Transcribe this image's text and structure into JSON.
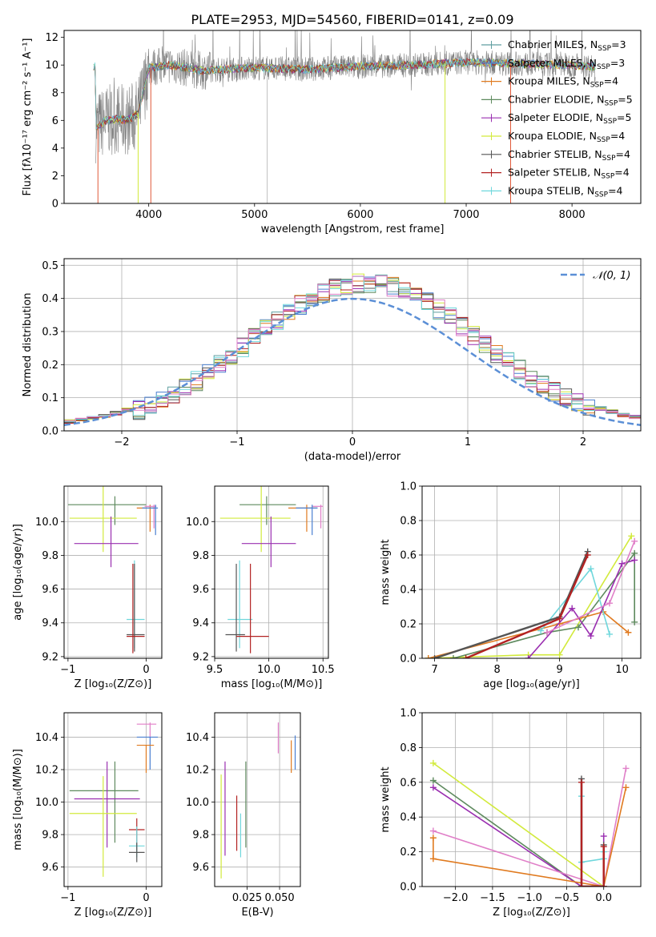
{
  "figure_title": "PLATE=2953, MJD=54560, FIBERID=0141, z=0.09",
  "colors": {
    "Chabrier MILES": "#5f9ea0",
    "Salpeter MILES": "#4a7fd0",
    "Kroupa MILES": "#e07a1f",
    "Chabrier ELODIE": "#5e8a5e",
    "Salpeter ELODIE": "#9a2fb0",
    "Kroupa ELODIE": "#d2ea3c",
    "Chabrier STELIB": "#555555",
    "Salpeter STELIB": "#b22222",
    "Kroupa STELIB": "#6fd7dc",
    "pink": "#e07fc8",
    "gaussian": "#5b8fd6"
  },
  "chart_data": [
    {
      "id": "spectrum",
      "type": "line",
      "xlabel": "wavelength [Angstrom, rest frame]",
      "ylabel": "Flux [fλ10⁻¹⁷ erg cm⁻² s⁻¹ A⁻¹]",
      "xlim": [
        3200,
        8650
      ],
      "ylim": [
        0,
        12.5
      ],
      "xticks": [
        4000,
        5000,
        6000,
        7000,
        8000
      ],
      "yticks": [
        0,
        2,
        4,
        6,
        8,
        10,
        12
      ],
      "grid": false,
      "legend_position": "right",
      "legend": [
        "Chabrier MILES, N_SSP=3",
        "Salpeter MILES, N_SSP=3",
        "Kroupa MILES, N_SSP=4",
        "Chabrier ELODIE, N_SSP=5",
        "Salpeter ELODIE, N_SSP=5",
        "Kroupa ELODIE, N_SSP=4",
        "Chabrier STELIB, N_SSP=4",
        "Salpeter STELIB, N_SSP=4",
        "Kroupa STELIB, N_SSP=4"
      ],
      "observed_continuum": [
        [
          3500,
          5.5
        ],
        [
          3600,
          6.0
        ],
        [
          3700,
          6.1
        ],
        [
          3800,
          6.0
        ],
        [
          3900,
          6.5
        ],
        [
          4000,
          9.8
        ],
        [
          4200,
          10.0
        ],
        [
          4500,
          9.6
        ],
        [
          5000,
          9.8
        ],
        [
          5500,
          9.7
        ],
        [
          6000,
          9.9
        ],
        [
          6500,
          10.0
        ],
        [
          7000,
          10.2
        ],
        [
          7500,
          10.1
        ],
        [
          8000,
          10.0
        ],
        [
          8200,
          9.9
        ]
      ],
      "dropouts": [
        3520,
        3900,
        4020,
        6800,
        7420
      ]
    },
    {
      "id": "residuals",
      "type": "line",
      "xlabel": "(data-model)/error",
      "ylabel": "Normed distribution",
      "xlim": [
        -2.5,
        2.5
      ],
      "ylim": [
        0,
        0.52
      ],
      "xticks": [
        -2,
        -1,
        0,
        1,
        2
      ],
      "yticks": [
        0.0,
        0.1,
        0.2,
        0.3,
        0.4,
        0.5
      ],
      "grid": true,
      "legend_position": "top-right",
      "legend": [
        "𝒩(0, 1)"
      ],
      "gaussian": {
        "mu": 0,
        "sigma": 1
      },
      "bin_width": 0.1,
      "hist_range": [
        -2.5,
        2.5
      ]
    },
    {
      "id": "age-Z",
      "type": "scatter",
      "xlabel": "Z [log₁₀(Z/Z⊙)]",
      "ylabel": "age  [log₁₀(age/yr)]",
      "xlim": [
        -1.05,
        0.2
      ],
      "ylim": [
        9.19,
        10.21
      ],
      "xticks": [
        -1,
        0
      ],
      "yticks": [
        9.2,
        9.4,
        9.6,
        9.8,
        10.0
      ],
      "grid": true,
      "points": [
        {
          "key": "Chabrier ELODIE",
          "x": -0.4,
          "y": 10.1,
          "xlo": -1.0,
          "xhi": 0.0,
          "ylo": 9.98,
          "yhi": 10.15
        },
        {
          "key": "Kroupa ELODIE",
          "x": -0.55,
          "y": 10.02,
          "xlo": -0.98,
          "xhi": -0.12,
          "ylo": 9.82,
          "yhi": 10.22
        },
        {
          "key": "Salpeter ELODIE",
          "x": -0.45,
          "y": 9.87,
          "xlo": -0.92,
          "xhi": -0.1,
          "ylo": 9.73,
          "yhi": 10.03
        },
        {
          "key": "Kroupa MILES",
          "x": 0.05,
          "y": 10.08,
          "xlo": -0.12,
          "xhi": 0.12,
          "ylo": 9.94,
          "yhi": 10.1
        },
        {
          "key": "pink",
          "x": 0.1,
          "y": 10.09,
          "xlo": -0.02,
          "xhi": 0.13,
          "ylo": 9.96,
          "yhi": 10.1
        },
        {
          "key": "Salpeter MILES",
          "x": 0.12,
          "y": 10.08,
          "xlo": -0.05,
          "xhi": 0.15,
          "ylo": 9.92,
          "yhi": 10.1
        },
        {
          "key": "Kroupa STELIB",
          "x": -0.15,
          "y": 9.42,
          "xlo": -0.25,
          "xhi": -0.02,
          "ylo": 9.25,
          "yhi": 9.77
        },
        {
          "key": "Chabrier STELIB",
          "x": -0.15,
          "y": 9.33,
          "xlo": -0.25,
          "xhi": -0.02,
          "ylo": 9.23,
          "yhi": 9.75
        },
        {
          "key": "Salpeter STELIB",
          "x": -0.17,
          "y": 9.32,
          "xlo": -0.25,
          "xhi": -0.02,
          "ylo": 9.22,
          "yhi": 9.75
        }
      ]
    },
    {
      "id": "age-mass",
      "type": "scatter",
      "xlabel": "mass [log₁₀(M/M⊙)]",
      "ylabel": "",
      "xlim": [
        9.5,
        10.55
      ],
      "ylim": [
        9.19,
        10.21
      ],
      "xticks": [
        9.5,
        10.0,
        10.5
      ],
      "yticks": [
        9.2,
        9.4,
        9.6,
        9.8,
        10.0
      ],
      "grid": true,
      "points": [
        {
          "key": "Chabrier ELODIE",
          "x": 9.98,
          "y": 10.1,
          "xlo": 9.73,
          "xhi": 10.25,
          "ylo": 9.98,
          "yhi": 10.15
        },
        {
          "key": "Kroupa ELODIE",
          "x": 9.93,
          "y": 10.02,
          "xlo": 9.55,
          "xhi": 10.2,
          "ylo": 9.82,
          "yhi": 10.22
        },
        {
          "key": "Salpeter ELODIE",
          "x": 10.02,
          "y": 9.87,
          "xlo": 9.75,
          "xhi": 10.25,
          "ylo": 9.73,
          "yhi": 10.03
        },
        {
          "key": "Kroupa MILES",
          "x": 10.35,
          "y": 10.08,
          "xlo": 10.18,
          "xhi": 10.45,
          "ylo": 9.94,
          "yhi": 10.1
        },
        {
          "key": "pink",
          "x": 10.48,
          "y": 10.09,
          "xlo": 10.4,
          "xhi": 10.5,
          "ylo": 9.96,
          "yhi": 10.1
        },
        {
          "key": "Salpeter MILES",
          "x": 10.4,
          "y": 10.08,
          "xlo": 10.25,
          "xhi": 10.45,
          "ylo": 9.92,
          "yhi": 10.1
        },
        {
          "key": "Kroupa STELIB",
          "x": 9.73,
          "y": 9.42,
          "xlo": 9.62,
          "xhi": 9.85,
          "ylo": 9.25,
          "yhi": 9.77
        },
        {
          "key": "Chabrier STELIB",
          "x": 9.7,
          "y": 9.33,
          "xlo": 9.6,
          "xhi": 9.78,
          "ylo": 9.23,
          "yhi": 9.75
        },
        {
          "key": "Salpeter STELIB",
          "x": 9.83,
          "y": 9.32,
          "xlo": 9.7,
          "xhi": 10.0,
          "ylo": 9.22,
          "yhi": 9.75
        }
      ]
    },
    {
      "id": "weight-age",
      "type": "line",
      "xlabel": "age  [log₁₀(age/yr)]",
      "ylabel": "mass weight",
      "xlim": [
        6.8,
        10.3
      ],
      "ylim": [
        0,
        1
      ],
      "xticks": [
        7,
        8,
        9,
        10
      ],
      "yticks": [
        0.0,
        0.2,
        0.4,
        0.6,
        0.8,
        1.0
      ],
      "grid": true,
      "series": [
        {
          "key": "Kroupa ELODIE",
          "x": [
            6.9,
            8.5,
            9.0,
            10.15
          ],
          "y": [
            0.0,
            0.02,
            0.02,
            0.71
          ]
        },
        {
          "key": "Chabrier ELODIE",
          "x": [
            7.3,
            8.8,
            9.3,
            10.2,
            10.2
          ],
          "y": [
            0.0,
            0.15,
            0.18,
            0.61,
            0.21
          ]
        },
        {
          "key": "Kroupa MILES",
          "x": [
            6.9,
            9.0,
            9.7,
            10.1
          ],
          "y": [
            0.0,
            0.2,
            0.27,
            0.15
          ]
        },
        {
          "key": "Kroupa STELIB",
          "x": [
            8.7,
            9.5,
            9.8
          ],
          "y": [
            0.16,
            0.52,
            0.14
          ]
        },
        {
          "key": "Salpeter ELODIE",
          "x": [
            8.5,
            9.2,
            9.5,
            10.0,
            10.2
          ],
          "y": [
            0.0,
            0.29,
            0.13,
            0.55,
            0.57
          ]
        },
        {
          "key": "pink",
          "x": [
            8.8,
            9.8,
            10.2
          ],
          "y": [
            0.15,
            0.32,
            0.68
          ]
        },
        {
          "key": "Chabrier STELIB",
          "x": [
            7.0,
            9.0,
            9.45
          ],
          "y": [
            0.0,
            0.24,
            0.62
          ]
        },
        {
          "key": "Salpeter STELIB",
          "x": [
            7.5,
            9.0,
            9.45
          ],
          "y": [
            0.0,
            0.23,
            0.6
          ]
        }
      ]
    },
    {
      "id": "mass-Z",
      "type": "scatter",
      "xlabel": "Z [log₁₀(Z/Z⊙)]",
      "ylabel": "mass [log₁₀(M/M⊙)]",
      "xlim": [
        -1.05,
        0.2
      ],
      "ylim": [
        9.48,
        10.55
      ],
      "xticks": [
        -1,
        0
      ],
      "yticks": [
        9.6,
        9.8,
        10.0,
        10.2,
        10.4
      ],
      "grid": true,
      "points": [
        {
          "key": "Chabrier ELODIE",
          "x": -0.4,
          "y": 10.07,
          "xlo": -0.98,
          "xhi": -0.1,
          "ylo": 9.75,
          "yhi": 10.25
        },
        {
          "key": "Salpeter ELODIE",
          "x": -0.5,
          "y": 10.02,
          "xlo": -0.92,
          "xhi": -0.08,
          "ylo": 9.72,
          "yhi": 10.25
        },
        {
          "key": "Kroupa ELODIE",
          "x": -0.55,
          "y": 9.93,
          "xlo": -0.98,
          "xhi": -0.12,
          "ylo": 9.54,
          "yhi": 10.16
        },
        {
          "key": "pink",
          "x": 0.05,
          "y": 10.48,
          "xlo": -0.12,
          "xhi": 0.13,
          "ylo": 10.4,
          "yhi": 10.49
        },
        {
          "key": "Salpeter MILES",
          "x": 0.05,
          "y": 10.4,
          "xlo": -0.12,
          "xhi": 0.15,
          "ylo": 10.2,
          "yhi": 10.4
        },
        {
          "key": "Kroupa MILES",
          "x": 0.0,
          "y": 10.35,
          "xlo": -0.12,
          "xhi": 0.1,
          "ylo": 10.18,
          "yhi": 10.35
        },
        {
          "key": "Salpeter STELIB",
          "x": -0.12,
          "y": 9.83,
          "xlo": -0.22,
          "xhi": -0.02,
          "ylo": 9.7,
          "yhi": 9.9
        },
        {
          "key": "Kroupa STELIB",
          "x": -0.12,
          "y": 9.73,
          "xlo": -0.22,
          "xhi": -0.02,
          "ylo": 9.66,
          "yhi": 9.85
        },
        {
          "key": "Chabrier STELIB",
          "x": -0.12,
          "y": 9.69,
          "xlo": -0.22,
          "xhi": -0.02,
          "ylo": 9.63,
          "yhi": 9.75
        }
      ]
    },
    {
      "id": "mass-ebv",
      "type": "scatter",
      "xlabel": "E(B-V)",
      "ylabel": "",
      "xlim": [
        0.0,
        0.066
      ],
      "ylim": [
        9.48,
        10.55
      ],
      "xticks": [
        0.025,
        0.05
      ],
      "yticks": [
        9.6,
        9.8,
        10.0,
        10.2,
        10.4
      ],
      "grid": true,
      "points": [
        {
          "key": "Kroupa ELODIE",
          "x": 0.005,
          "ylo": 9.53,
          "yhi": 10.17
        },
        {
          "key": "Salpeter ELODIE",
          "x": 0.008,
          "ylo": 9.67,
          "yhi": 10.25
        },
        {
          "key": "Salpeter STELIB",
          "x": 0.017,
          "ylo": 9.7,
          "yhi": 10.04
        },
        {
          "key": "Kroupa STELIB",
          "x": 0.02,
          "ylo": 9.66,
          "yhi": 9.93
        },
        {
          "key": "Chabrier ELODIE",
          "x": 0.024,
          "ylo": 9.72,
          "yhi": 10.25
        },
        {
          "key": "pink",
          "x": 0.049,
          "ylo": 10.3,
          "yhi": 10.49
        },
        {
          "key": "Kroupa MILES",
          "x": 0.059,
          "ylo": 10.18,
          "yhi": 10.38
        },
        {
          "key": "Salpeter MILES",
          "x": 0.062,
          "ylo": 10.2,
          "yhi": 10.41
        }
      ]
    },
    {
      "id": "weight-Z",
      "type": "line",
      "xlabel": "Z [log₁₀(Z/Z⊙)]",
      "ylabel": "mass weight",
      "xlim": [
        -2.45,
        0.5
      ],
      "ylim": [
        0,
        1
      ],
      "xticks": [
        -2.0,
        -1.5,
        -1.0,
        -0.5,
        0.0
      ],
      "yticks": [
        0.0,
        0.2,
        0.4,
        0.6,
        0.8,
        1.0
      ],
      "grid": true,
      "series": [
        {
          "key": "Kroupa ELODIE",
          "x": [
            -2.3,
            0.0
          ],
          "y": [
            0.71,
            0.0
          ]
        },
        {
          "key": "Chabrier ELODIE",
          "x": [
            -2.3,
            -0.3,
            0.0
          ],
          "y": [
            0.61,
            0.0,
            0.0
          ]
        },
        {
          "key": "Salpeter ELODIE",
          "x": [
            -2.3,
            -0.3,
            0.0,
            0.0
          ],
          "y": [
            0.57,
            0.0,
            0.0,
            0.29
          ]
        },
        {
          "key": "pink",
          "x": [
            -2.3,
            0.0,
            0.3
          ],
          "y": [
            0.32,
            0.0,
            0.68
          ]
        },
        {
          "key": "Kroupa MILES",
          "x": [
            -2.3,
            -2.3,
            0.0,
            0.3
          ],
          "y": [
            0.28,
            0.16,
            0.0,
            0.57
          ]
        },
        {
          "key": "Kroupa STELIB",
          "x": [
            -0.3,
            -0.3,
            0.0,
            0.0
          ],
          "y": [
            0.52,
            0.14,
            0.16,
            0.2
          ]
        },
        {
          "key": "Chabrier STELIB",
          "x": [
            -0.3,
            -0.3,
            0.0,
            0.0
          ],
          "y": [
            0.62,
            0.0,
            0.0,
            0.24
          ]
        },
        {
          "key": "Salpeter STELIB",
          "x": [
            -0.3,
            -0.3,
            0.0,
            0.0
          ],
          "y": [
            0.6,
            0.0,
            0.0,
            0.23
          ]
        }
      ]
    }
  ]
}
